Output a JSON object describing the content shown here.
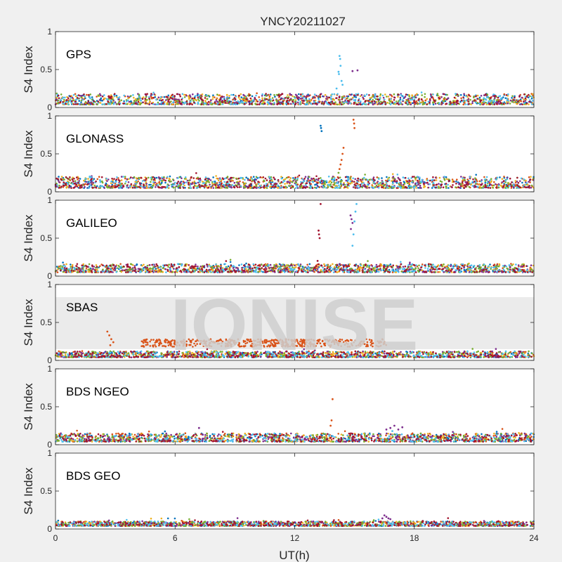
{
  "figure": {
    "title": "YNCY20211027",
    "xlabel": "UT(h)",
    "watermark": "IONISE"
  },
  "colors": {
    "background": "#f0f0f0",
    "axes_face": "#ffffff",
    "watermark_band": "#ebebeb",
    "series": [
      "#0072bd",
      "#d95319",
      "#edb120",
      "#7e2f8e",
      "#77ac30",
      "#4dbeee",
      "#a2142f"
    ]
  },
  "chart_data": [
    {
      "type": "scatter",
      "label": "GPS",
      "ylabel": "S4 Index",
      "xlim": [
        0,
        24
      ],
      "ylim": [
        0,
        1
      ],
      "xticks": [
        0,
        6,
        12,
        18,
        24
      ],
      "yticks": [
        0,
        0.5,
        1
      ],
      "baseline": [
        0.04,
        0.18
      ],
      "active": [
        [
          0,
          24
        ]
      ],
      "outliers": [
        {
          "x": 14.25,
          "y": 0.68,
          "c": 5
        },
        {
          "x": 14.28,
          "y": 0.64,
          "c": 5
        },
        {
          "x": 14.3,
          "y": 0.55,
          "c": 5
        },
        {
          "x": 14.2,
          "y": 0.47,
          "c": 5
        },
        {
          "x": 14.22,
          "y": 0.44,
          "c": 5
        },
        {
          "x": 14.35,
          "y": 0.35,
          "c": 5
        },
        {
          "x": 14.4,
          "y": 0.3,
          "c": 5
        },
        {
          "x": 14.9,
          "y": 0.48,
          "c": 3
        },
        {
          "x": 15.15,
          "y": 0.49,
          "c": 3
        },
        {
          "x": 14.1,
          "y": 0.25,
          "c": 5
        }
      ]
    },
    {
      "type": "scatter",
      "label": "GLONASS",
      "ylabel": "S4 Index",
      "xlim": [
        0,
        24
      ],
      "ylim": [
        0,
        1
      ],
      "xticks": [
        0,
        6,
        12,
        18,
        24
      ],
      "yticks": [
        0,
        0.5,
        1
      ],
      "baseline": [
        0.05,
        0.2
      ],
      "active": [
        [
          0,
          24
        ]
      ],
      "outliers": [
        {
          "x": 13.3,
          "y": 0.87,
          "c": 0
        },
        {
          "x": 13.32,
          "y": 0.84,
          "c": 0
        },
        {
          "x": 13.35,
          "y": 0.8,
          "c": 0
        },
        {
          "x": 14.95,
          "y": 0.95,
          "c": 1
        },
        {
          "x": 14.98,
          "y": 0.9,
          "c": 1
        },
        {
          "x": 15.0,
          "y": 0.84,
          "c": 1
        },
        {
          "x": 14.45,
          "y": 0.58,
          "c": 1
        },
        {
          "x": 14.4,
          "y": 0.5,
          "c": 1
        },
        {
          "x": 14.35,
          "y": 0.42,
          "c": 1
        },
        {
          "x": 14.3,
          "y": 0.36,
          "c": 1
        },
        {
          "x": 14.25,
          "y": 0.3,
          "c": 1
        },
        {
          "x": 14.2,
          "y": 0.25,
          "c": 4
        }
      ]
    },
    {
      "type": "scatter",
      "label": "GALILEO",
      "ylabel": "S4 Index",
      "xlim": [
        0,
        24
      ],
      "ylim": [
        0,
        1
      ],
      "xticks": [
        0,
        6,
        12,
        18,
        24
      ],
      "yticks": [
        0,
        0.5,
        1
      ],
      "baseline": [
        0.05,
        0.16
      ],
      "active": [
        [
          0,
          24
        ]
      ],
      "outliers": [
        {
          "x": 13.3,
          "y": 0.95,
          "c": 6
        },
        {
          "x": 13.2,
          "y": 0.6,
          "c": 6
        },
        {
          "x": 13.22,
          "y": 0.55,
          "c": 6
        },
        {
          "x": 13.25,
          "y": 0.5,
          "c": 6
        },
        {
          "x": 13.15,
          "y": 0.2,
          "c": 6
        },
        {
          "x": 14.8,
          "y": 0.8,
          "c": 3
        },
        {
          "x": 14.85,
          "y": 0.75,
          "c": 3
        },
        {
          "x": 14.9,
          "y": 0.7,
          "c": 3
        },
        {
          "x": 14.82,
          "y": 0.62,
          "c": 3
        },
        {
          "x": 15.1,
          "y": 0.95,
          "c": 5
        },
        {
          "x": 15.05,
          "y": 0.85,
          "c": 5
        },
        {
          "x": 15.0,
          "y": 0.72,
          "c": 5
        },
        {
          "x": 14.95,
          "y": 0.55,
          "c": 5
        },
        {
          "x": 14.9,
          "y": 0.4,
          "c": 5
        }
      ]
    },
    {
      "type": "scatter",
      "label": "SBAS",
      "ylabel": "S4 Index",
      "xlim": [
        0,
        24
      ],
      "ylim": [
        0,
        1
      ],
      "xticks": [
        0,
        6,
        12,
        18,
        24
      ],
      "yticks": [
        0,
        0.5,
        1
      ],
      "baseline": [
        0.04,
        0.12
      ],
      "active": [
        [
          0,
          24
        ]
      ],
      "elevated_band": {
        "c": 1,
        "y": [
          0.18,
          0.28
        ],
        "ranges": [
          [
            4.3,
            16.6
          ]
        ]
      },
      "outliers": [
        {
          "x": 2.6,
          "y": 0.38,
          "c": 1
        },
        {
          "x": 2.7,
          "y": 0.33,
          "c": 1
        },
        {
          "x": 2.8,
          "y": 0.28,
          "c": 1
        },
        {
          "x": 2.9,
          "y": 0.24,
          "c": 1
        },
        {
          "x": 2.75,
          "y": 0.2,
          "c": 1
        }
      ]
    },
    {
      "type": "scatter",
      "label": "BDS NGEO",
      "ylabel": "S4 Index",
      "xlim": [
        0,
        24
      ],
      "ylim": [
        0,
        1
      ],
      "xticks": [
        0,
        6,
        12,
        18,
        24
      ],
      "yticks": [
        0,
        0.5,
        1
      ],
      "baseline": [
        0.04,
        0.15
      ],
      "active": [
        [
          0,
          24
        ]
      ],
      "outliers": [
        {
          "x": 13.9,
          "y": 0.6,
          "c": 1
        },
        {
          "x": 13.85,
          "y": 0.32,
          "c": 1
        },
        {
          "x": 13.8,
          "y": 0.25,
          "c": 1
        },
        {
          "x": 16.8,
          "y": 0.22,
          "c": 3
        },
        {
          "x": 17.0,
          "y": 0.25,
          "c": 3
        },
        {
          "x": 17.2,
          "y": 0.2,
          "c": 3
        },
        {
          "x": 16.6,
          "y": 0.2,
          "c": 3
        },
        {
          "x": 17.4,
          "y": 0.23,
          "c": 3
        },
        {
          "x": 16.9,
          "y": 0.18,
          "c": 5
        },
        {
          "x": 7.2,
          "y": 0.22,
          "c": 3
        }
      ]
    },
    {
      "type": "scatter",
      "label": "BDS GEO",
      "ylabel": "S4 Index",
      "xlim": [
        0,
        24
      ],
      "ylim": [
        0,
        1
      ],
      "xticks": [
        0,
        6,
        12,
        18,
        24
      ],
      "yticks": [
        0,
        0.5,
        1
      ],
      "baseline": [
        0.04,
        0.1
      ],
      "active": [
        [
          0,
          24
        ]
      ],
      "outliers": [
        {
          "x": 16.5,
          "y": 0.18,
          "c": 3
        },
        {
          "x": 16.6,
          "y": 0.16,
          "c": 3
        },
        {
          "x": 16.7,
          "y": 0.14,
          "c": 3
        },
        {
          "x": 16.8,
          "y": 0.13,
          "c": 3
        },
        {
          "x": 16.4,
          "y": 0.14,
          "c": 3
        }
      ]
    }
  ]
}
